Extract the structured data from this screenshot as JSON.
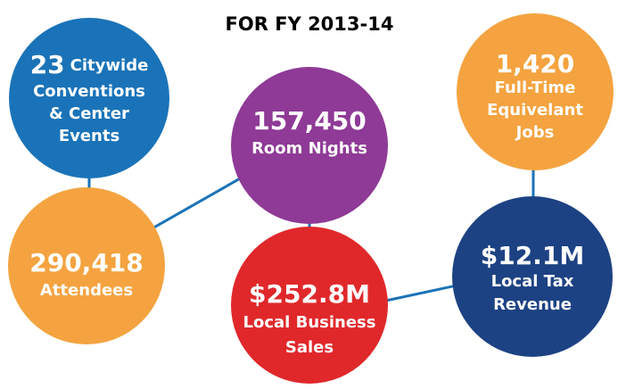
{
  "title": "FOR FY 2013-14",
  "nodes": [
    {
      "value": "23",
      "lines": [
        "Citywide",
        "Conventions",
        "& Center",
        "Events"
      ]
    },
    {
      "value": "290,418",
      "lines": [
        "Attendees"
      ]
    },
    {
      "value": "157,450",
      "lines": [
        "Room Nights"
      ]
    },
    {
      "value": "$252.8M",
      "lines": [
        "Local Business",
        "Sales"
      ]
    },
    {
      "value": "1,420",
      "lines": [
        "Full-Time",
        "Equivelant",
        "Jobs"
      ]
    },
    {
      "value": "$12.1M",
      "lines": [
        "Local Tax",
        "Revenue"
      ]
    }
  ]
}
